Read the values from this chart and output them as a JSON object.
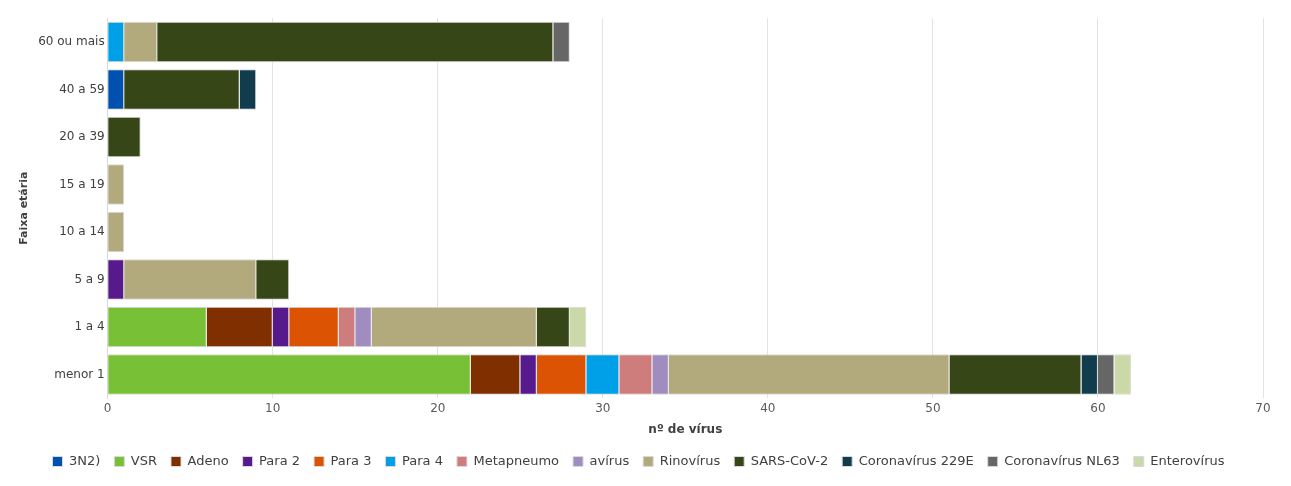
{
  "chart_data": {
    "type": "bar",
    "orientation": "horizontal",
    "stacked": true,
    "xlabel": "nº de vírus",
    "ylabel": "Faixa etária",
    "categories": [
      "60 ou mais",
      "40 a 59",
      "20 a 39",
      "15 a 19",
      "10 a 14",
      "5 a 9",
      "1 a 4",
      "menor 1"
    ],
    "xlim": [
      0,
      70
    ],
    "xticks": [
      0,
      10,
      20,
      30,
      40,
      50,
      60,
      70
    ],
    "grid": "x",
    "legend": "bottom",
    "series": [
      {
        "name": "3N2)",
        "color": "#0050b0",
        "values": [
          null,
          1,
          null,
          null,
          null,
          null,
          null,
          null
        ]
      },
      {
        "name": "VSR",
        "color": "#78c036",
        "values": [
          null,
          null,
          null,
          null,
          null,
          null,
          6,
          22
        ]
      },
      {
        "name": "Adeno",
        "color": "#7f2f00",
        "values": [
          null,
          null,
          null,
          null,
          null,
          null,
          4,
          3
        ]
      },
      {
        "name": "Para 2",
        "color": "#561a8c",
        "values": [
          null,
          null,
          null,
          null,
          null,
          1,
          1,
          1
        ]
      },
      {
        "name": "Para 3",
        "color": "#dc5304",
        "values": [
          null,
          null,
          null,
          null,
          null,
          null,
          3,
          3
        ]
      },
      {
        "name": "Para 4",
        "color": "#00a0e8",
        "values": [
          1,
          null,
          null,
          null,
          null,
          null,
          null,
          2
        ]
      },
      {
        "name": "Metapneumo",
        "color": "#ce7c7c",
        "values": [
          null,
          null,
          null,
          null,
          null,
          null,
          1,
          2
        ]
      },
      {
        "name": "avírus",
        "color": "#a18cbf",
        "values": [
          null,
          null,
          null,
          null,
          null,
          null,
          1,
          1
        ]
      },
      {
        "name": "Rinovírus",
        "color": "#b2a97c",
        "values": [
          2,
          null,
          null,
          1,
          1,
          8,
          10,
          17
        ]
      },
      {
        "name": "SARS-CoV-2",
        "color": "#364616",
        "values": [
          24,
          7,
          2,
          null,
          null,
          2,
          2,
          8
        ]
      },
      {
        "name": "Coronavírus 229E",
        "color": "#113c4e",
        "values": [
          null,
          1,
          null,
          null,
          null,
          null,
          null,
          1
        ]
      },
      {
        "name": "Coronavírus NL63",
        "color": "#666666",
        "values": [
          1,
          null,
          null,
          null,
          null,
          null,
          null,
          1
        ]
      },
      {
        "name": "Enterovírus",
        "color": "#cbd9a8",
        "values": [
          null,
          null,
          null,
          null,
          null,
          null,
          1,
          1
        ]
      }
    ]
  }
}
